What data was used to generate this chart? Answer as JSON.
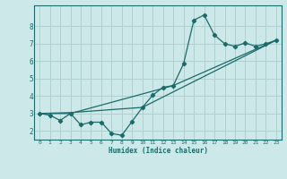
{
  "xlabel": "Humidex (Indice chaleur)",
  "background_color": "#cce8e8",
  "grid_color": "#b0d0d0",
  "line_color": "#1a6b6b",
  "xlim": [
    -0.5,
    23.5
  ],
  "ylim": [
    1.5,
    9.2
  ],
  "xticks": [
    0,
    1,
    2,
    3,
    4,
    5,
    6,
    7,
    8,
    9,
    10,
    11,
    12,
    13,
    14,
    15,
    16,
    17,
    18,
    19,
    20,
    21,
    22,
    23
  ],
  "yticks": [
    2,
    3,
    4,
    5,
    6,
    7,
    8
  ],
  "line1_x": [
    0,
    1,
    2,
    3,
    4,
    5,
    6,
    7,
    8,
    9,
    10,
    11,
    12,
    13,
    14,
    15,
    16,
    17,
    18,
    19,
    20,
    21,
    22,
    23
  ],
  "line1_y": [
    3.0,
    2.9,
    2.6,
    3.0,
    2.35,
    2.5,
    2.5,
    1.85,
    1.75,
    2.55,
    3.35,
    4.05,
    4.5,
    4.6,
    5.85,
    8.35,
    8.65,
    7.5,
    7.0,
    6.85,
    7.05,
    6.85,
    7.0,
    7.2
  ],
  "line3_x": [
    0,
    3,
    13,
    23
  ],
  "line3_y": [
    3.0,
    3.0,
    4.6,
    7.2
  ],
  "line4_x": [
    0,
    3,
    10,
    23
  ],
  "line4_y": [
    3.0,
    3.05,
    3.35,
    7.2
  ]
}
